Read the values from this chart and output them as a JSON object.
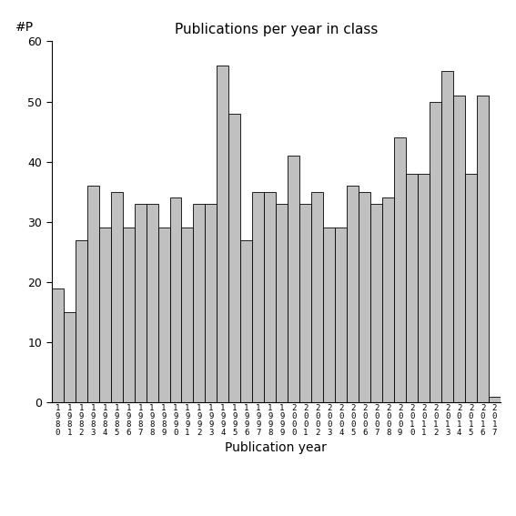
{
  "title": "Publications per year in class",
  "xlabel": "Publication year",
  "ylabel_label": "#P",
  "bar_color": "#c0c0c0",
  "edge_color": "#000000",
  "background_color": "#ffffff",
  "ylim": [
    0,
    60
  ],
  "yticks": [
    0,
    10,
    20,
    30,
    40,
    50,
    60
  ],
  "years": [
    1980,
    1981,
    1982,
    1983,
    1984,
    1985,
    1986,
    1987,
    1988,
    1989,
    1990,
    1991,
    1992,
    1993,
    1994,
    1995,
    1996,
    1997,
    1998,
    1999,
    2000,
    2001,
    2002,
    2003,
    2004,
    2005,
    2006,
    2007,
    2008,
    2009,
    2010,
    2011,
    2012,
    2013,
    2014,
    2015,
    2016,
    2017
  ],
  "values": [
    19,
    15,
    27,
    36,
    29,
    35,
    29,
    33,
    33,
    29,
    34,
    29,
    33,
    33,
    56,
    48,
    27,
    35,
    35,
    33,
    41,
    33,
    35,
    29,
    29,
    36,
    35,
    33,
    34,
    44,
    38,
    38,
    50,
    55,
    51,
    38,
    51,
    1
  ]
}
